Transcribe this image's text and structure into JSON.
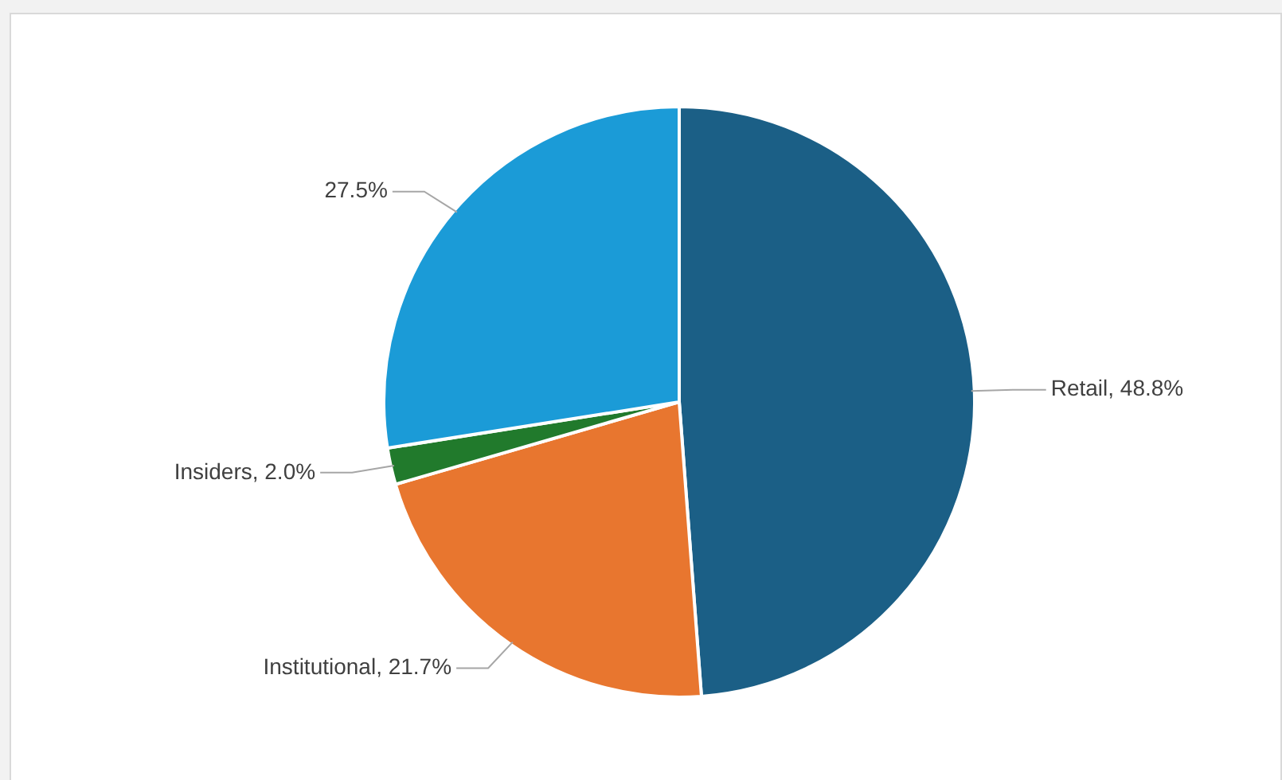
{
  "chart_data": {
    "type": "pie",
    "categories": [
      "Retail",
      "Institutional",
      "Insiders",
      null
    ],
    "values": [
      48.8,
      21.7,
      2.0,
      27.5
    ],
    "colors": [
      "#1b5f86",
      "#e8762f",
      "#217a2c",
      "#1b9bd7"
    ],
    "value_labels": [
      "48.8%",
      "21.7%",
      "2.0%",
      "27.5%"
    ],
    "legend": false
  }
}
